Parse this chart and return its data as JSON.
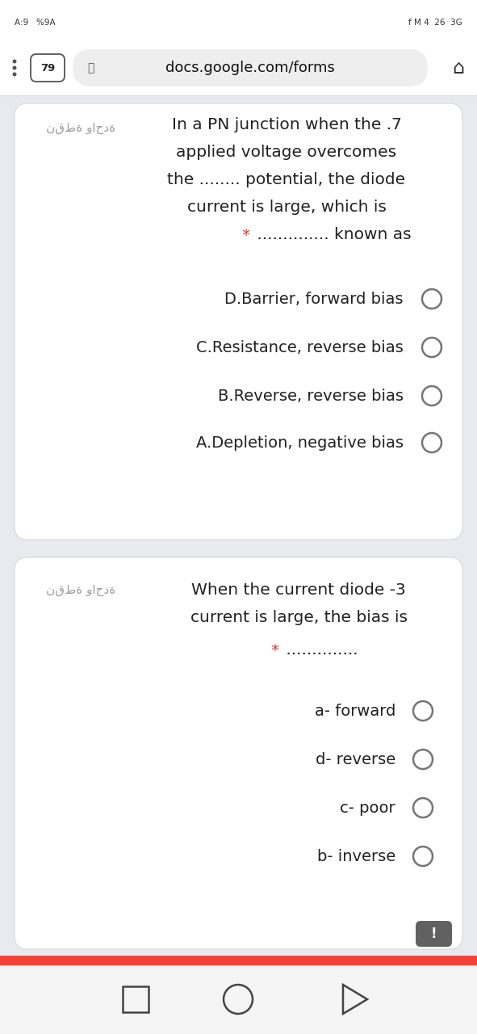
{
  "bg_color": "#e8eaf0",
  "card_color": "#ffffff",
  "status_bar_text": "A:9   %9A",
  "status_bar_right": "f M 4  26  3G",
  "tab_number": "79",
  "url_text": "docs.google.com/forms",
  "q1_arabic": "نقطة واحدة",
  "q1_line1": "In a PN junction when the .7",
  "q1_line2": "applied voltage overcomes",
  "q1_line3": "the ........ potential, the diode",
  "q1_line4": "current is large, which is",
  "q1_star": "*",
  "q1_line5": " .............. known as",
  "q1_options": [
    "D.Barrier, forward bias",
    "C.Resistance, reverse bias",
    "B.Reverse, reverse bias",
    "A.Depletion, negative bias"
  ],
  "q2_arabic": "نقطة واحدة",
  "q2_line1": "When the current diode -3",
  "q2_line2": "current is large, the bias is",
  "q2_star": "*",
  "q2_line3": " ..............",
  "q2_options": [
    "a- forward",
    "d- reverse",
    "c- poor",
    "b- inverse"
  ],
  "red_star_color": "#e53935",
  "text_color": "#212121",
  "arabic_color": "#9e9e9e",
  "radio_stroke": "#757575",
  "exclaim_bg": "#616161",
  "nav_bg": "#f5f5f5",
  "sep_color": "#e0e0e0",
  "red_bar_color": "#f44336"
}
